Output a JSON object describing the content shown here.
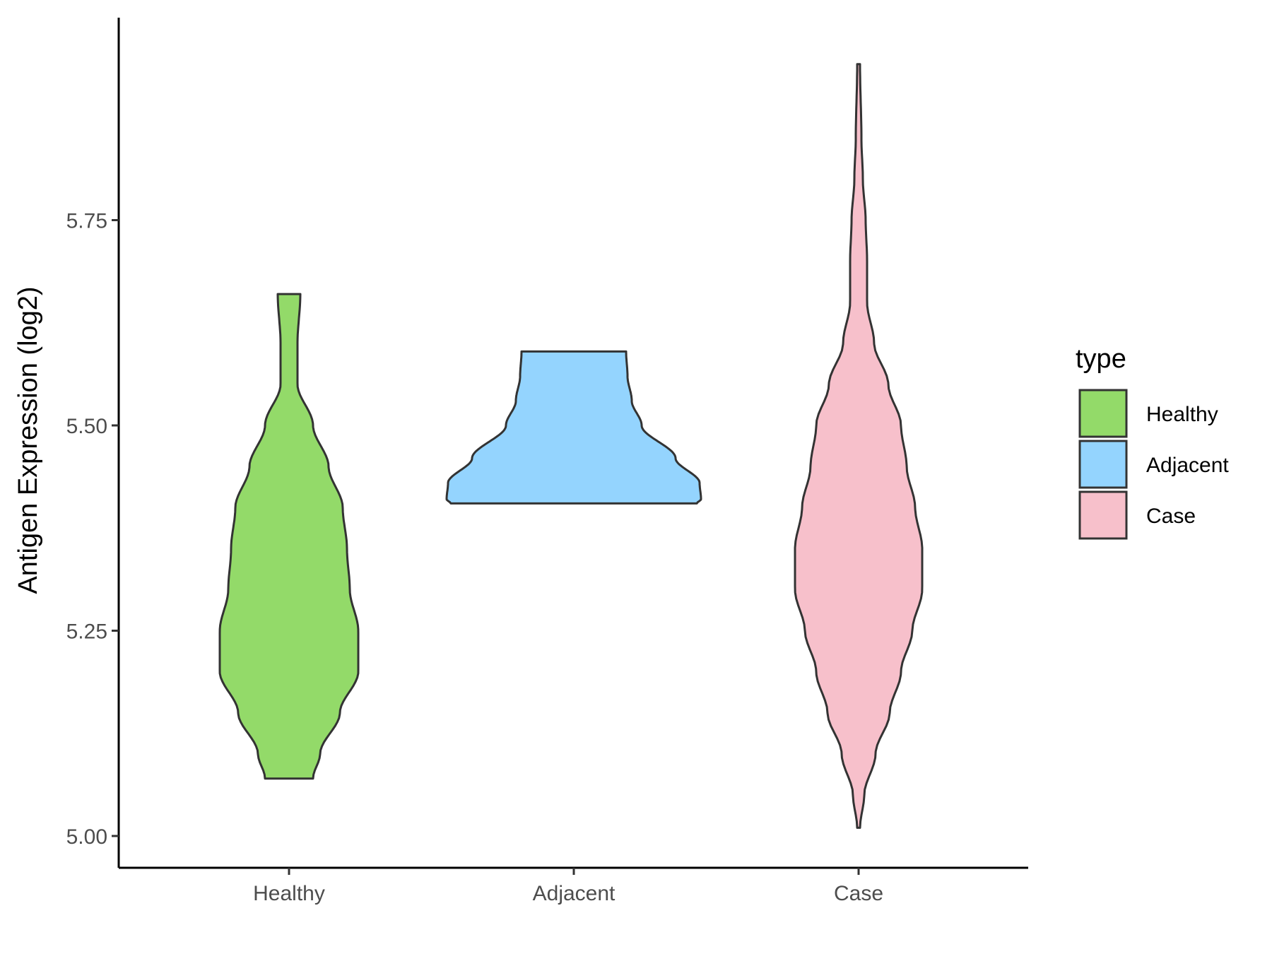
{
  "chart_data": {
    "type": "violin",
    "title": "",
    "xlabel": "",
    "ylabel": "Antigen Expression (log2)",
    "ylim": [
      4.96,
      5.99
    ],
    "yticks": [
      "5.00",
      "5.25",
      "5.50",
      "5.75"
    ],
    "categories": [
      "Healthy",
      "Adjacent",
      "Case"
    ],
    "legend": {
      "title": "type",
      "position": "right",
      "entries": [
        "Healthy",
        "Adjacent",
        "Case"
      ]
    },
    "colors": {
      "Healthy": "#93da69",
      "Adjacent": "#94d4fe",
      "Case": "#f7c0cb",
      "outline": "#333333"
    },
    "series": [
      {
        "name": "Healthy",
        "min": 5.07,
        "max": 5.66,
        "density_profile": [
          [
            5.07,
            0.17
          ],
          [
            5.1,
            0.22
          ],
          [
            5.15,
            0.36
          ],
          [
            5.2,
            0.49
          ],
          [
            5.25,
            0.49
          ],
          [
            5.3,
            0.43
          ],
          [
            5.35,
            0.41
          ],
          [
            5.4,
            0.38
          ],
          [
            5.45,
            0.28
          ],
          [
            5.5,
            0.17
          ],
          [
            5.55,
            0.06
          ],
          [
            5.6,
            0.06
          ],
          [
            5.66,
            0.08
          ]
        ]
      },
      {
        "name": "Adjacent",
        "min": 5.405,
        "max": 5.59,
        "density_profile": [
          [
            5.405,
            0.87
          ],
          [
            5.41,
            0.9
          ],
          [
            5.43,
            0.89
          ],
          [
            5.46,
            0.72
          ],
          [
            5.5,
            0.48
          ],
          [
            5.53,
            0.41
          ],
          [
            5.56,
            0.38
          ],
          [
            5.59,
            0.37
          ]
        ]
      },
      {
        "name": "Case",
        "min": 5.01,
        "max": 5.94,
        "density_profile": [
          [
            5.01,
            0.01
          ],
          [
            5.05,
            0.04
          ],
          [
            5.1,
            0.12
          ],
          [
            5.15,
            0.22
          ],
          [
            5.2,
            0.3
          ],
          [
            5.25,
            0.38
          ],
          [
            5.3,
            0.45
          ],
          [
            5.35,
            0.45
          ],
          [
            5.4,
            0.4
          ],
          [
            5.45,
            0.34
          ],
          [
            5.5,
            0.3
          ],
          [
            5.55,
            0.21
          ],
          [
            5.6,
            0.11
          ],
          [
            5.65,
            0.06
          ],
          [
            5.7,
            0.06
          ],
          [
            5.75,
            0.05
          ],
          [
            5.8,
            0.03
          ],
          [
            5.85,
            0.02
          ],
          [
            5.94,
            0.01
          ]
        ]
      }
    ]
  }
}
